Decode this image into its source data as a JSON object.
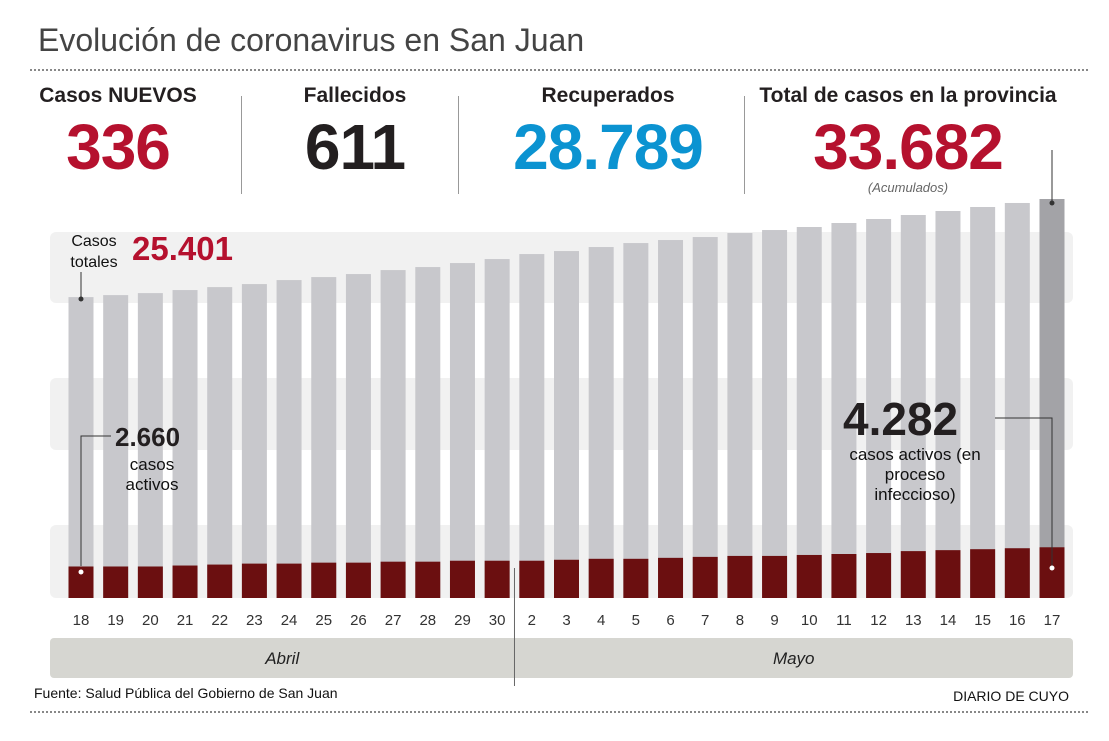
{
  "title": "Evolución de coronavirus en San Juan",
  "stats": [
    {
      "label": "Casos NUEVOS",
      "value": "336",
      "color": "#b5112e"
    },
    {
      "label": "Fallecidos",
      "value": "611",
      "color": "#231f20"
    },
    {
      "label": "Recuperados",
      "value": "28.789",
      "color": "#0b93d1"
    },
    {
      "label": "Total de casos en la provincia",
      "value": "33.682",
      "color": "#b5112e",
      "note": "(Acumulados)"
    }
  ],
  "chart_data": {
    "type": "bar",
    "categories": [
      "18",
      "19",
      "20",
      "21",
      "22",
      "23",
      "24",
      "25",
      "26",
      "27",
      "28",
      "29",
      "30",
      "2",
      "3",
      "4",
      "5",
      "6",
      "7",
      "8",
      "9",
      "10",
      "11",
      "12",
      "13",
      "14",
      "15",
      "16",
      "17"
    ],
    "months": [
      "Abril",
      "Mayo"
    ],
    "series": [
      {
        "name": "Casos totales",
        "color": "#c8c8cc",
        "last_color": "#a3a3a7",
        "values": [
          25401,
          25570,
          25739,
          25994,
          26246,
          26500,
          26838,
          27092,
          27345,
          27683,
          27937,
          28275,
          28613,
          29035,
          29289,
          29627,
          29965,
          30218,
          30472,
          30810,
          31063,
          31317,
          31655,
          31993,
          32331,
          32669,
          33007,
          33345,
          33682
        ],
        "value_labels": [
          "25.401",
          null,
          null,
          null,
          null,
          null,
          null,
          null,
          null,
          null,
          null,
          null,
          null,
          null,
          null,
          null,
          null,
          null,
          null,
          null,
          null,
          null,
          null,
          null,
          null,
          null,
          null,
          null,
          "33.682"
        ]
      },
      {
        "name": "casos activos",
        "color": "#6b0f10",
        "values": [
          2660,
          2660,
          2660,
          2741,
          2822,
          2903,
          2903,
          2984,
          2984,
          3066,
          3066,
          3147,
          3147,
          3147,
          3228,
          3309,
          3309,
          3390,
          3471,
          3552,
          3552,
          3633,
          3714,
          3795,
          3958,
          4039,
          4120,
          4201,
          4282
        ],
        "value_labels": [
          "2.660",
          null,
          null,
          null,
          null,
          null,
          null,
          null,
          null,
          null,
          null,
          null,
          null,
          null,
          null,
          null,
          null,
          null,
          null,
          null,
          null,
          null,
          null,
          null,
          null,
          null,
          null,
          null,
          "4.282"
        ]
      }
    ],
    "annotation": "casos activos (en proceso infeccioso)"
  },
  "source": "Fuente: Salud Pública del Gobierno de San Juan",
  "credit": "DIARIO DE CUYO"
}
